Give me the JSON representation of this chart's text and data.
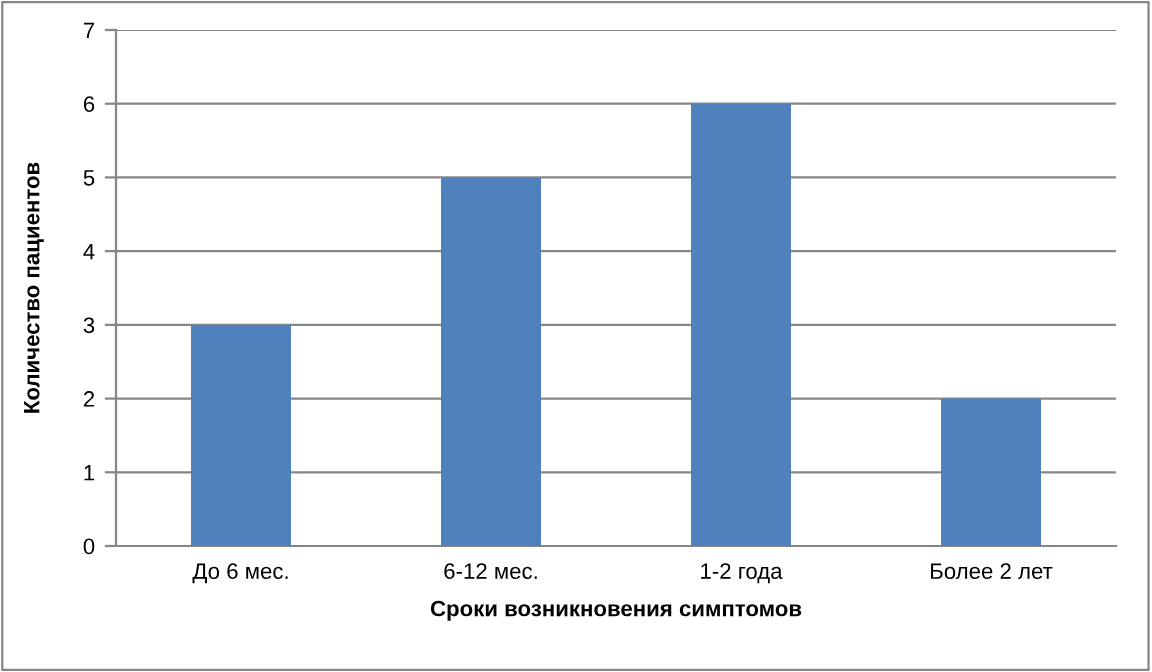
{
  "chart_data": {
    "type": "bar",
    "xlabel": "Сроки возникновения симптомов",
    "ylabel": "Количество пациентов",
    "categories": [
      "До 6 мес.",
      "6-12 мес.",
      "1-2 года",
      "Более 2 лет"
    ],
    "values": [
      3,
      5,
      6,
      2
    ],
    "color": "#4f81bd",
    "ylim": [
      0,
      7
    ],
    "yticks": [
      0,
      1,
      2,
      3,
      4,
      5,
      6,
      7
    ],
    "grid": "y"
  }
}
